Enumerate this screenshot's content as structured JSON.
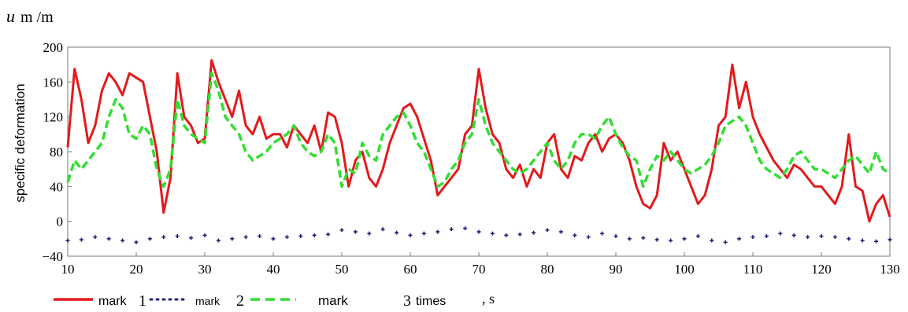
{
  "chart_data": {
    "type": "line",
    "unit_label": "um /m",
    "unit_prefix_glyph": "u",
    "unit_suffix": "m /m",
    "ylabel": "specific deformation",
    "xlabel": ", s",
    "xlim": [
      10,
      130
    ],
    "ylim": [
      -40,
      200
    ],
    "x_ticks": [
      10,
      20,
      30,
      40,
      50,
      60,
      70,
      80,
      90,
      100,
      110,
      120,
      130
    ],
    "y_ticks": [
      -40,
      0,
      40,
      80,
      120,
      160,
      200
    ],
    "y_tick_labels": [
      "−40",
      "0",
      "40",
      "80",
      "120",
      "160",
      "200"
    ],
    "grid": false,
    "legend_position": "bottom",
    "legend": {
      "mark1_word": "mark",
      "mark1_num": "1",
      "mark2_word": "mark",
      "mark2_num": "2",
      "mark3_word": "mark",
      "mark3_num": "3",
      "times_word": "times",
      "xunit": ", s"
    },
    "series": [
      {
        "name": "mark 1",
        "color": "#e31a1c",
        "style": "solid",
        "x": [
          10,
          11,
          12,
          13,
          14,
          15,
          16,
          17,
          18,
          19,
          20,
          21,
          22,
          23,
          24,
          25,
          26,
          27,
          28,
          29,
          30,
          31,
          32,
          33,
          34,
          35,
          36,
          37,
          38,
          39,
          40,
          41,
          42,
          43,
          44,
          45,
          46,
          47,
          48,
          49,
          50,
          51,
          52,
          53,
          54,
          55,
          56,
          57,
          58,
          59,
          60,
          61,
          62,
          63,
          64,
          65,
          66,
          67,
          68,
          69,
          70,
          71,
          72,
          73,
          74,
          75,
          76,
          77,
          78,
          79,
          80,
          81,
          82,
          83,
          84,
          85,
          86,
          87,
          88,
          89,
          90,
          91,
          92,
          93,
          94,
          95,
          96,
          97,
          98,
          99,
          100,
          101,
          102,
          103,
          104,
          105,
          106,
          107,
          108,
          109,
          110,
          111,
          112,
          113,
          114,
          115,
          116,
          117,
          118,
          119,
          120,
          121,
          122,
          123,
          124,
          125,
          126,
          127,
          128,
          129,
          130
        ],
        "values": [
          85,
          175,
          140,
          90,
          110,
          150,
          170,
          160,
          145,
          170,
          165,
          160,
          120,
          80,
          10,
          50,
          170,
          120,
          110,
          90,
          95,
          185,
          160,
          140,
          120,
          150,
          110,
          100,
          120,
          95,
          100,
          100,
          85,
          110,
          100,
          90,
          110,
          80,
          125,
          120,
          90,
          40,
          70,
          80,
          50,
          40,
          60,
          90,
          110,
          130,
          135,
          120,
          95,
          70,
          30,
          40,
          50,
          60,
          100,
          110,
          175,
          130,
          100,
          90,
          60,
          50,
          65,
          40,
          60,
          50,
          90,
          100,
          60,
          50,
          75,
          70,
          90,
          100,
          80,
          95,
          100,
          90,
          70,
          40,
          20,
          15,
          30,
          90,
          70,
          80,
          60,
          40,
          20,
          30,
          60,
          110,
          120,
          180,
          130,
          160,
          120,
          100,
          85,
          70,
          60,
          50,
          65,
          60,
          50,
          40,
          40,
          30,
          20,
          40,
          100,
          40,
          35,
          0,
          20,
          30,
          5
        ]
      },
      {
        "name": "mark 2",
        "color": "#1f2378",
        "style": "dotted",
        "x": [
          10,
          12,
          14,
          16,
          18,
          20,
          22,
          24,
          26,
          28,
          30,
          32,
          34,
          36,
          38,
          40,
          42,
          44,
          46,
          48,
          50,
          52,
          54,
          56,
          58,
          60,
          62,
          64,
          66,
          68,
          70,
          72,
          74,
          76,
          78,
          80,
          82,
          84,
          86,
          88,
          90,
          92,
          94,
          96,
          98,
          100,
          102,
          104,
          106,
          108,
          110,
          112,
          114,
          116,
          118,
          120,
          122,
          124,
          126,
          128,
          130
        ],
        "values": [
          -22,
          -21,
          -18,
          -20,
          -22,
          -24,
          -20,
          -18,
          -17,
          -19,
          -16,
          -22,
          -20,
          -18,
          -17,
          -20,
          -18,
          -17,
          -16,
          -15,
          -10,
          -12,
          -14,
          -9,
          -13,
          -16,
          -14,
          -12,
          -9,
          -8,
          -12,
          -14,
          -16,
          -15,
          -13,
          -10,
          -12,
          -16,
          -18,
          -14,
          -17,
          -20,
          -19,
          -21,
          -22,
          -20,
          -17,
          -22,
          -24,
          -20,
          -18,
          -17,
          -14,
          -16,
          -18,
          -17,
          -18,
          -20,
          -22,
          -23,
          -21
        ]
      },
      {
        "name": "mark 3",
        "color": "#33dd33",
        "style": "dashed",
        "x": [
          10,
          11,
          12,
          13,
          14,
          15,
          16,
          17,
          18,
          19,
          20,
          21,
          22,
          23,
          24,
          25,
          26,
          27,
          28,
          29,
          30,
          31,
          32,
          33,
          34,
          35,
          36,
          37,
          38,
          39,
          40,
          41,
          42,
          43,
          44,
          45,
          46,
          47,
          48,
          49,
          50,
          51,
          52,
          53,
          54,
          55,
          56,
          57,
          58,
          59,
          60,
          61,
          62,
          63,
          64,
          65,
          66,
          67,
          68,
          69,
          70,
          71,
          72,
          73,
          74,
          75,
          76,
          77,
          78,
          79,
          80,
          81,
          82,
          83,
          84,
          85,
          86,
          87,
          88,
          89,
          90,
          91,
          92,
          93,
          94,
          95,
          96,
          97,
          98,
          99,
          100,
          101,
          102,
          103,
          104,
          105,
          106,
          107,
          108,
          109,
          110,
          111,
          112,
          113,
          114,
          115,
          116,
          117,
          118,
          119,
          120,
          121,
          122,
          123,
          124,
          125,
          126,
          127,
          128,
          129,
          130
        ],
        "values": [
          45,
          70,
          60,
          70,
          80,
          90,
          120,
          140,
          130,
          100,
          95,
          110,
          100,
          60,
          40,
          60,
          140,
          110,
          100,
          95,
          90,
          170,
          150,
          120,
          110,
          100,
          80,
          70,
          75,
          80,
          90,
          95,
          100,
          110,
          90,
          80,
          75,
          80,
          100,
          90,
          40,
          60,
          55,
          90,
          75,
          70,
          100,
          110,
          120,
          125,
          110,
          90,
          80,
          60,
          40,
          45,
          60,
          70,
          90,
          100,
          140,
          110,
          90,
          80,
          70,
          60,
          55,
          60,
          70,
          80,
          90,
          70,
          60,
          70,
          90,
          100,
          100,
          95,
          110,
          120,
          100,
          85,
          75,
          70,
          40,
          60,
          75,
          70,
          80,
          70,
          60,
          55,
          60,
          65,
          75,
          90,
          110,
          115,
          120,
          110,
          90,
          70,
          60,
          55,
          50,
          60,
          75,
          80,
          70,
          60,
          60,
          55,
          50,
          60,
          70,
          75,
          65,
          55,
          80,
          60,
          55
        ]
      }
    ]
  }
}
